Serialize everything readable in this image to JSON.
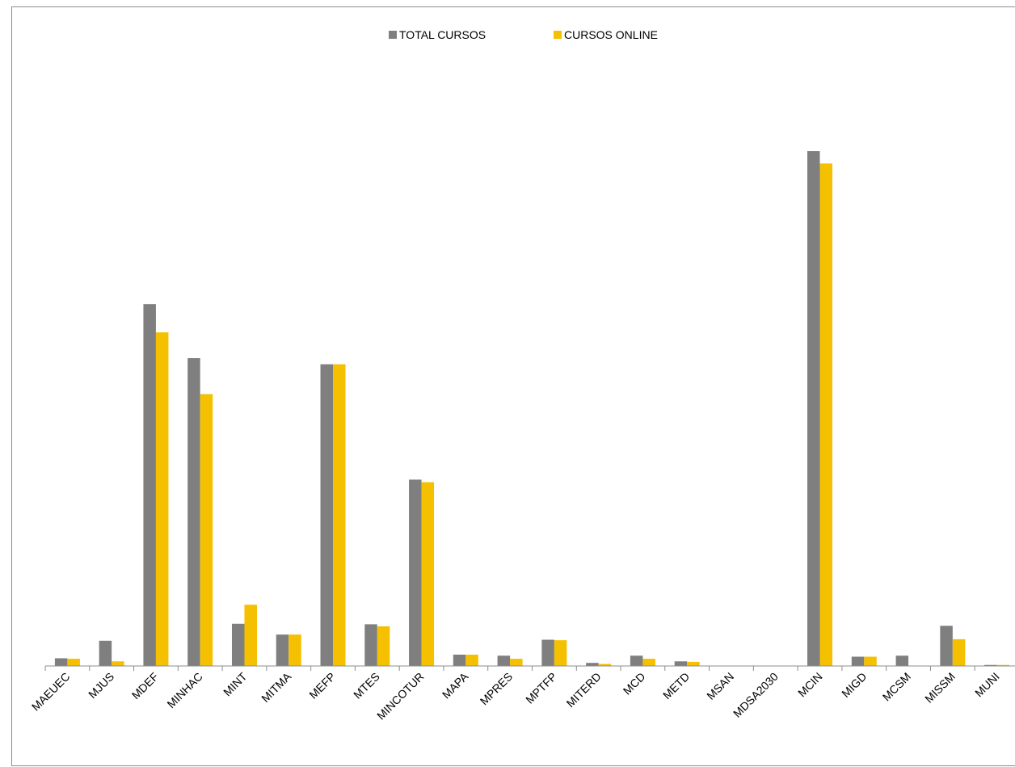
{
  "chart_data": {
    "type": "bar",
    "title": "",
    "xlabel": "",
    "ylabel": "",
    "ylim": [
      0,
      100
    ],
    "legend_position": "top-center",
    "grid": false,
    "categories": [
      "MAEUEC",
      "MJUS",
      "MDEF",
      "MINHAC",
      "MINT",
      "MITMA",
      "MEFP",
      "MTES",
      "MINCOTUR",
      "MAPA",
      "MPRES",
      "MPTFP",
      "MITERD",
      "MCD",
      "METD",
      "MSAN",
      "MDSA2030",
      "MCIN",
      "MIGD",
      "MCSM",
      "MISSM",
      "MUNI"
    ],
    "series": [
      {
        "name": "TOTAL CURSOS",
        "color": "#7f7f7f",
        "values": [
          1.5,
          4.9,
          70.3,
          59.8,
          8.2,
          6.1,
          58.6,
          8.1,
          36.2,
          2.2,
          2.0,
          5.1,
          0.6,
          2.0,
          0.9,
          0,
          0,
          100.0,
          1.8,
          2.0,
          7.8,
          0.2
        ]
      },
      {
        "name": "CURSOS ONLINE",
        "color": "#f5c000",
        "values": [
          1.4,
          0.9,
          64.8,
          52.8,
          11.9,
          6.1,
          58.6,
          7.7,
          35.7,
          2.2,
          1.4,
          5.0,
          0.4,
          1.4,
          0.8,
          0,
          0,
          97.6,
          1.8,
          0,
          5.2,
          0.2
        ]
      }
    ]
  }
}
